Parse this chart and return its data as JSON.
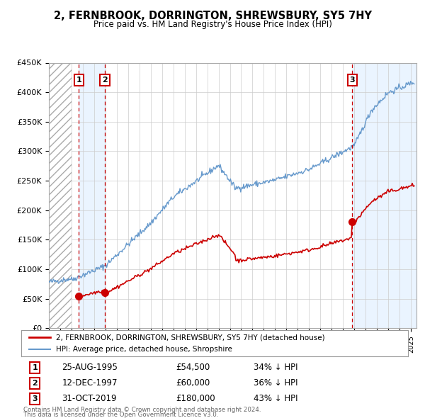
{
  "title": "2, FERNBROOK, DORRINGTON, SHREWSBURY, SY5 7HY",
  "subtitle": "Price paid vs. HM Land Registry's House Price Index (HPI)",
  "ylabel_ticks": [
    "£0",
    "£50K",
    "£100K",
    "£150K",
    "£200K",
    "£250K",
    "£300K",
    "£350K",
    "£400K",
    "£450K"
  ],
  "ytick_values": [
    0,
    50000,
    100000,
    150000,
    200000,
    250000,
    300000,
    350000,
    400000,
    450000
  ],
  "xmin": 1993.0,
  "xmax": 2025.5,
  "ymin": 0,
  "ymax": 450000,
  "sales": [
    {
      "label": "1",
      "date": "25-AUG-1995",
      "year": 1995.65,
      "price": 54500,
      "pct": "34%"
    },
    {
      "label": "2",
      "date": "12-DEC-1997",
      "year": 1997.95,
      "price": 60000,
      "pct": "36%"
    },
    {
      "label": "3",
      "date": "31-OCT-2019",
      "year": 2019.83,
      "price": 180000,
      "pct": "43%"
    }
  ],
  "legend_property": "2, FERNBROOK, DORRINGTON, SHREWSBURY, SY5 7HY (detached house)",
  "legend_hpi": "HPI: Average price, detached house, Shropshire",
  "footer_line1": "Contains HM Land Registry data © Crown copyright and database right 2024.",
  "footer_line2": "This data is licensed under the Open Government Licence v3.0.",
  "red_color": "#cc0000",
  "blue_color": "#6699cc",
  "blue_fill_color": "#ddeeff",
  "background_color": "#ffffff"
}
